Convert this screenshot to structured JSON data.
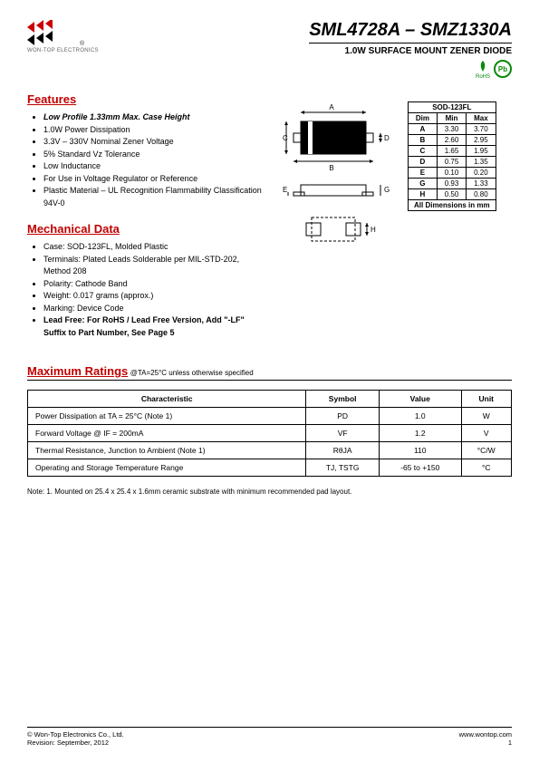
{
  "company": "WON-TOP ELECTRONICS",
  "title": "SML4728A – SMZ1330A",
  "subtitle": "1.0W SURFACE MOUNT ZENER DIODE",
  "badge_rohs": "RoHS",
  "badge_pb": "Pb",
  "features_hdr": "Features",
  "features": [
    {
      "text": "Low Profile 1.33mm Max. Case Height",
      "style": "bold-it"
    },
    {
      "text": "1.0W Power Dissipation"
    },
    {
      "text": "3.3V – 330V Nominal Zener Voltage"
    },
    {
      "text": "5% Standard Vz Tolerance"
    },
    {
      "text": "Low Inductance"
    },
    {
      "text": "For Use in Voltage Regulator or Reference"
    },
    {
      "text": "Plastic Material – UL Recognition Flammability Classification 94V-0"
    }
  ],
  "mech_hdr": "Mechanical Data",
  "mech": [
    {
      "text": "Case: SOD-123FL, Molded Plastic"
    },
    {
      "text": "Terminals: Plated Leads Solderable per MIL-STD-202, Method 208"
    },
    {
      "text": "Polarity: Cathode Band"
    },
    {
      "text": "Weight: 0.017 grams (approx.)"
    },
    {
      "text": "Marking: Device Code"
    },
    {
      "text": "Lead Free: For RoHS / Lead Free Version, Add \"-LF\" Suffix to Part Number, See Page 5",
      "style": "bold"
    }
  ],
  "dim_title": "SOD-123FL",
  "dim_cols": [
    "Dim",
    "Min",
    "Max"
  ],
  "dim_rows": [
    [
      "A",
      "3.30",
      "3.70"
    ],
    [
      "B",
      "2.60",
      "2.95"
    ],
    [
      "C",
      "1.65",
      "1.95"
    ],
    [
      "D",
      "0.75",
      "1.35"
    ],
    [
      "E",
      "0.10",
      "0.20"
    ],
    [
      "G",
      "0.93",
      "1.33"
    ],
    [
      "H",
      "0.50",
      "0.80"
    ]
  ],
  "dim_foot": "All Dimensions in mm",
  "diagram_labels": {
    "A": "A",
    "B": "B",
    "C": "C",
    "D": "D",
    "E": "E",
    "G": "G",
    "H": "H"
  },
  "ratings_hdr": "Maximum Ratings",
  "ratings_cond": "@TA=25°C unless otherwise specified",
  "ratings_cols": [
    "Characteristic",
    "Symbol",
    "Value",
    "Unit"
  ],
  "ratings_rows": [
    {
      "char": "Power Dissipation at TA = 25°C (Note 1)",
      "sym": "PD",
      "val": "1.0",
      "unit": "W"
    },
    {
      "char": "Forward Voltage @ IF = 200mA",
      "sym": "VF",
      "val": "1.2",
      "unit": "V"
    },
    {
      "char": "Thermal Resistance, Junction to Ambient (Note 1)",
      "sym": "RθJA",
      "val": "110",
      "unit": "°C/W"
    },
    {
      "char": "Operating and Storage Temperature Range",
      "sym": "TJ, TSTG",
      "val": "-65 to +150",
      "unit": "°C"
    }
  ],
  "note": "Note:  1. Mounted on 25.4 x 25.4 x 1.6mm ceramic substrate with minimum recommended pad layout.",
  "footer_left1": "© Won-Top Electronics Co., Ltd.",
  "footer_left2": "Revision: September, 2012",
  "footer_right1": "www.wontop.com",
  "footer_right2": "1",
  "colors": {
    "red": "#c00000",
    "green": "#0a8a0a",
    "logo_red": "#cc0000",
    "logo_black": "#000000"
  }
}
